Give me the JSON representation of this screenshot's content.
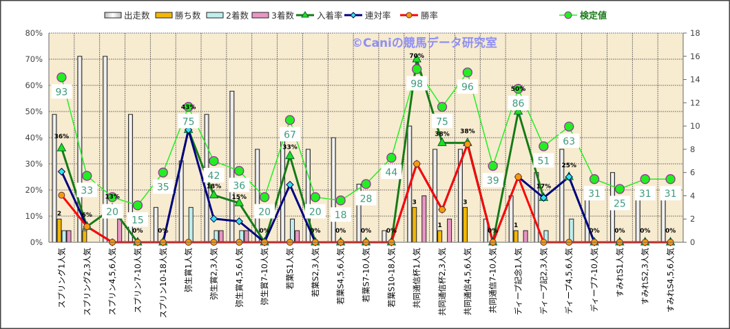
{
  "chart_data": {
    "type": "bar+line",
    "watermark": "©Caniの競馬データ研究室",
    "categories": [
      "スプリング1人気",
      "スプリング2,3人気",
      "スプリン4,5,6人気",
      "スプリン7-10人気",
      "スプリン10-18人気",
      "弥生賞1人気",
      "弥生賞2,3人気",
      "弥生賞4,5,6人気",
      "弥生賞7-10人気",
      "若葉S1人気",
      "若葉S2,3人気",
      "若葉S4,5,6人気",
      "若葉S7-10人気",
      "若葉S10-18人気",
      "共同通信杯1人気",
      "共同通信杯2,3人気",
      "共同通信4,5,6人気",
      "共同通信7-10人気",
      "ディープ記念1人気",
      "ディープ記2,3人気",
      "ディープ4,5,6人気",
      "ディープ7-10人気",
      "すみれS1人気",
      "すみれS2,3人気",
      "すみれS4,5,6人気"
    ],
    "left_axis": {
      "range": [
        0,
        80
      ],
      "ticks": [
        "0%",
        "10%",
        "20%",
        "30%",
        "40%",
        "50%",
        "60%",
        "70%",
        "80%"
      ]
    },
    "right_axis": {
      "range": [
        0,
        18
      ],
      "ticks": [
        "0",
        "2",
        "4",
        "6",
        "8",
        "10",
        "12",
        "14",
        "16",
        "18"
      ]
    },
    "kentei_axis_range": [
      -7.5,
      120
    ],
    "bar_series": [
      {
        "name": "出走数",
        "color": "#e8e8e8",
        "values": [
          11,
          16,
          16,
          11,
          3,
          7,
          11,
          13,
          8,
          9,
          8,
          9,
          5,
          1,
          10,
          8,
          8,
          2,
          4,
          6,
          8,
          4,
          6,
          4,
          4
        ]
      },
      {
        "name": "勝ち数",
        "color": "#f2b705",
        "values": [
          2,
          1,
          0,
          0,
          0,
          0,
          0,
          0,
          0,
          0,
          0,
          0,
          0,
          0,
          3,
          1,
          3,
          0,
          1,
          0,
          0,
          0,
          0,
          0,
          0
        ]
      },
      {
        "name": "2着数",
        "color": "#bfeeee",
        "values": [
          1,
          0,
          0,
          0,
          0,
          3,
          1,
          1,
          0,
          2,
          0,
          0,
          0,
          0,
          0,
          0,
          0,
          0,
          0,
          1,
          2,
          0,
          0,
          0,
          0
        ]
      },
      {
        "name": "3着数",
        "color": "#e896c4",
        "values": [
          1,
          0,
          2,
          0,
          0,
          0,
          1,
          1,
          0,
          1,
          0,
          0,
          0,
          0,
          4,
          2,
          0,
          0,
          1,
          0,
          0,
          0,
          0,
          0,
          0
        ]
      }
    ],
    "win_count_labels": [
      "2",
      "",
      "",
      "",
      "",
      "",
      "",
      "",
      "",
      "",
      "",
      "",
      "",
      "",
      "3",
      "1",
      "3",
      "",
      "1",
      "",
      "",
      "",
      "",
      "",
      ""
    ],
    "line_series": [
      {
        "name": "入着率",
        "color": "#157a15",
        "marker": "#22dd22",
        "values": [
          36,
          6,
          13,
          0,
          0,
          43,
          18,
          15,
          0,
          33,
          0,
          0,
          0,
          0,
          70,
          38,
          38,
          0,
          50,
          17,
          25,
          0,
          0,
          0,
          0
        ],
        "labels": [
          "36%",
          "6%",
          "13%",
          "0%",
          "0%",
          "43%",
          "18%",
          "15%",
          "0%",
          "33%",
          "0%",
          "0%",
          "0%",
          "0%",
          "70%",
          "38%",
          "38%",
          "0%",
          "50%",
          "17%",
          "25%",
          "0%",
          "0%",
          "0%",
          "0%"
        ]
      },
      {
        "name": "連対率",
        "color": "#000080",
        "marker": "#33e0f0",
        "values": [
          27,
          6,
          0,
          0,
          0,
          43,
          9,
          8,
          0,
          22,
          0,
          0,
          0,
          0,
          30,
          12.5,
          37.5,
          0,
          25,
          17,
          25,
          0,
          0,
          0,
          0
        ]
      },
      {
        "name": "勝率",
        "color": "#ff0000",
        "marker": "#f59a10",
        "values": [
          18,
          6,
          0,
          0,
          0,
          0,
          0,
          0,
          0,
          0,
          0,
          0,
          0,
          0,
          30,
          12.5,
          37.5,
          0,
          25,
          0,
          0,
          0,
          0,
          0,
          0
        ]
      }
    ],
    "kentei": {
      "name": "検定値",
      "color": "#22ee22",
      "values": [
        93,
        33,
        20,
        15,
        35,
        75,
        42,
        36,
        20,
        67,
        20,
        18,
        28,
        44,
        98,
        75,
        96,
        39,
        86,
        51,
        63,
        31,
        25,
        31,
        31
      ]
    }
  }
}
